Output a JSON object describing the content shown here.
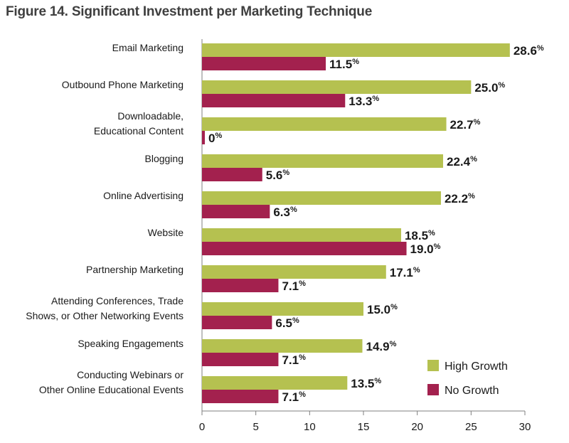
{
  "chart_data": {
    "type": "bar",
    "orientation": "horizontal",
    "title": "Figure 14. Significant Investment per Marketing Technique",
    "categories": [
      [
        "Email Marketing"
      ],
      [
        "Outbound Phone Marketing"
      ],
      [
        "Downloadable,",
        "Educational Content"
      ],
      [
        "Blogging"
      ],
      [
        "Online Advertising"
      ],
      [
        "Website"
      ],
      [
        "Partnership Marketing"
      ],
      [
        "Attending Conferences, Trade",
        "Shows, or Other Networking Events"
      ],
      [
        "Speaking Engagements"
      ],
      [
        "Conducting Webinars or",
        "Other Online Educational Events"
      ]
    ],
    "series": [
      {
        "name": "High Growth",
        "color": "#b5c150",
        "values": [
          28.6,
          25.0,
          22.7,
          22.4,
          22.2,
          18.5,
          17.1,
          15.0,
          14.9,
          13.5
        ]
      },
      {
        "name": "No Growth",
        "color": "#a3214e",
        "values": [
          11.5,
          13.3,
          0,
          5.6,
          6.3,
          19.0,
          7.1,
          6.5,
          7.1,
          7.1
        ]
      }
    ],
    "value_labels": {
      "high": [
        "28.6",
        "25.0",
        "22.7",
        "22.4",
        "22.2",
        "18.5",
        "17.1",
        "15.0",
        "14.9",
        "13.5"
      ],
      "no": [
        "11.5",
        "13.3",
        "0",
        "5.6",
        "6.3",
        "19.0",
        "7.1",
        "6.5",
        "7.1",
        "7.1"
      ]
    },
    "unit_suffix": "%",
    "xlim": [
      0,
      30
    ],
    "xticks": [
      "0",
      "5",
      "10",
      "15",
      "20",
      "25",
      "30"
    ],
    "grid": false,
    "legend_position": "bottom-right"
  }
}
